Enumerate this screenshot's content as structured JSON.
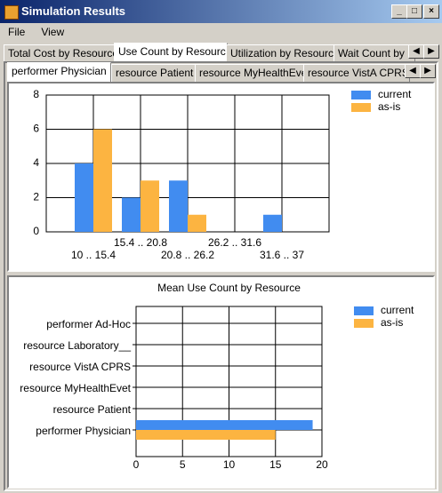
{
  "window": {
    "title": "Simulation Results"
  },
  "menu": [
    "File",
    "View"
  ],
  "tabs": [
    "Total Cost by Resource",
    "Use Count by Resource",
    "Utilization by Resource",
    "Wait Count by Re"
  ],
  "resource_tabs": [
    "performer Physician",
    "resource Patient",
    "resource MyHealthEvet",
    "resource VistA CPRS"
  ],
  "chart_data": [
    {
      "type": "bar",
      "categories": [
        "10 .. 15.4",
        "15.4 .. 20.8",
        "20.8 .. 26.2",
        "26.2 .. 31.6",
        "31.6 .. 37"
      ],
      "series": [
        {
          "name": "current",
          "color": "#418cf0",
          "values": [
            4,
            2,
            3,
            0,
            1
          ]
        },
        {
          "name": "as-is",
          "color": "#fcb441",
          "values": [
            6,
            3,
            1,
            0,
            0
          ]
        }
      ],
      "ylim": [
        0,
        8
      ],
      "yticks": [
        0,
        2,
        4,
        6,
        8
      ],
      "grid": true
    },
    {
      "type": "barh",
      "title": "Mean Use Count by Resource",
      "categories": [
        "performer Physician",
        "resource Patient",
        "resource MyHealthEvet",
        "resource VistA CPRS",
        "resource Laboratory__",
        "performer Ad-Hoc"
      ],
      "series": [
        {
          "name": "current",
          "color": "#418cf0",
          "values": [
            19,
            0,
            0,
            0,
            0,
            0
          ]
        },
        {
          "name": "as-is",
          "color": "#fcb441",
          "values": [
            15,
            0,
            0,
            0,
            0,
            0
          ]
        }
      ],
      "xlim": [
        0,
        20
      ],
      "xticks": [
        0,
        5,
        10,
        15,
        20
      ],
      "grid": true
    }
  ]
}
